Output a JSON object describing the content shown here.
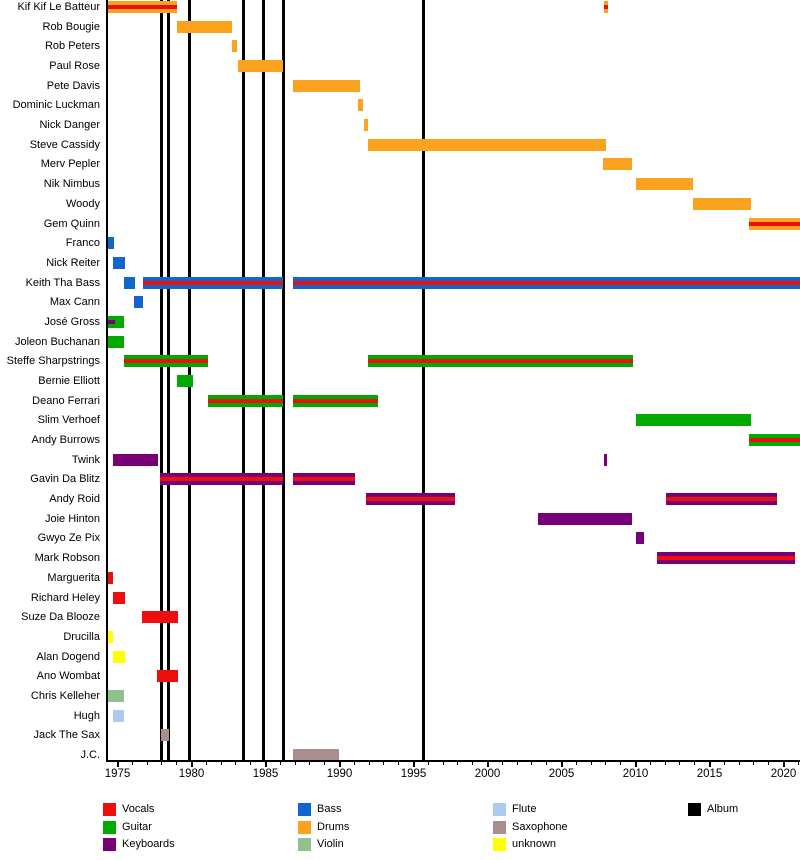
{
  "colors": {
    "vocals": "#ee0e0e",
    "guitar": "#00aa00",
    "keyboards": "#770077",
    "bass": "#1166cc",
    "drums": "#fba31e",
    "violin": "#90c290",
    "flute": "#aecaf0",
    "saxophone": "#aa8d8d",
    "unknown": "#ffff00",
    "album": "#000000"
  },
  "chart_data": {
    "type": "timeline",
    "x_range": [
      1974.3,
      2021.2
    ],
    "grid": false,
    "x_ticks": [
      {
        "label": "1975",
        "year": 1975
      },
      {
        "label": "1980",
        "year": 1980
      },
      {
        "label": "1985",
        "year": 1985
      },
      {
        "label": "1990",
        "year": 1990
      },
      {
        "label": "1995",
        "year": 1995
      },
      {
        "label": "2000",
        "year": 2000
      },
      {
        "label": "2005",
        "year": 2005
      },
      {
        "label": "2010",
        "year": 2010
      },
      {
        "label": "2015",
        "year": 2015
      },
      {
        "label": "2020",
        "year": 2020
      }
    ],
    "album_years": [
      1977.95,
      1978.45,
      1979.85,
      1983.5,
      1984.85,
      1986.2,
      1995.7
    ],
    "rows": [
      {
        "name": "Kif Kif Le Batteur",
        "bars": [
          {
            "from": 1974.3,
            "to": 1979.0,
            "role": "drums",
            "stripe": "vocals"
          },
          {
            "from": 2007.9,
            "to": 2008.15,
            "role": "drums",
            "stripe": "vocals"
          }
        ]
      },
      {
        "name": "Rob Bougie",
        "bars": [
          {
            "from": 1979.0,
            "to": 1982.75,
            "role": "drums"
          }
        ]
      },
      {
        "name": "Rob Peters",
        "bars": [
          {
            "from": 1982.75,
            "to": 1983.05,
            "role": "drums"
          }
        ]
      },
      {
        "name": "Paul Rose",
        "bars": [
          {
            "from": 1983.15,
            "to": 1986.2,
            "role": "drums"
          }
        ]
      },
      {
        "name": "Pete Davis",
        "bars": [
          {
            "from": 1986.85,
            "to": 1991.4,
            "role": "drums"
          }
        ]
      },
      {
        "name": "Dominic Luckman",
        "bars": [
          {
            "from": 1991.25,
            "to": 1991.6,
            "role": "drums"
          }
        ]
      },
      {
        "name": "Nick Danger",
        "bars": [
          {
            "from": 1991.65,
            "to": 1991.9,
            "role": "drums"
          }
        ]
      },
      {
        "name": "Steve Cassidy",
        "bars": [
          {
            "from": 1991.9,
            "to": 2008.0,
            "role": "drums"
          }
        ]
      },
      {
        "name": "Merv Pepler",
        "bars": [
          {
            "from": 2007.8,
            "to": 2009.75,
            "role": "drums"
          }
        ]
      },
      {
        "name": "Nik Nimbus",
        "bars": [
          {
            "from": 2010.05,
            "to": 2013.9,
            "role": "drums"
          }
        ]
      },
      {
        "name": "Woody",
        "bars": [
          {
            "from": 2013.9,
            "to": 2017.8,
            "role": "drums"
          }
        ]
      },
      {
        "name": "Gem Quinn",
        "bars": [
          {
            "from": 2017.7,
            "to": 2021.2,
            "role": "drums",
            "stripe": "vocals"
          }
        ]
      },
      {
        "name": "Franco",
        "bars": [
          {
            "from": 1974.3,
            "to": 1974.75,
            "role": "bass"
          }
        ]
      },
      {
        "name": "Nick Reiter",
        "bars": [
          {
            "from": 1974.7,
            "to": 1975.5,
            "role": "bass"
          }
        ]
      },
      {
        "name": "Keith Tha Bass",
        "bars": [
          {
            "from": 1975.45,
            "to": 1976.2,
            "role": "bass"
          },
          {
            "from": 1976.7,
            "to": 1986.2,
            "role": "bass",
            "stripe": "vocals"
          },
          {
            "from": 1986.85,
            "to": 2021.2,
            "role": "bass",
            "stripe": "vocals"
          }
        ]
      },
      {
        "name": "Max Cann",
        "bars": [
          {
            "from": 1976.1,
            "to": 1976.7,
            "role": "bass"
          }
        ]
      },
      {
        "name": "José Gross",
        "bars": [
          {
            "from": 1974.3,
            "to": 1975.45,
            "role": "guitar"
          },
          {
            "from": 1974.3,
            "to": 1974.8,
            "role": "keyboards",
            "thin": true
          }
        ]
      },
      {
        "name": "Joleon Buchanan",
        "bars": [
          {
            "from": 1974.3,
            "to": 1975.45,
            "role": "guitar"
          }
        ]
      },
      {
        "name": "Steffe Sharpstrings",
        "bars": [
          {
            "from": 1975.45,
            "to": 1981.1,
            "role": "guitar",
            "stripe": "vocals"
          },
          {
            "from": 1991.9,
            "to": 2009.8,
            "role": "guitar",
            "stripe": "vocals"
          }
        ]
      },
      {
        "name": "Bernie Elliott",
        "bars": [
          {
            "from": 1979.0,
            "to": 1980.1,
            "role": "guitar"
          }
        ]
      },
      {
        "name": "Deano Ferrari",
        "bars": [
          {
            "from": 1981.1,
            "to": 1986.2,
            "role": "guitar",
            "stripe": "vocals"
          },
          {
            "from": 1986.85,
            "to": 1992.6,
            "role": "guitar",
            "stripe": "vocals"
          }
        ]
      },
      {
        "name": "Slim Verhoef",
        "bars": [
          {
            "from": 2010.05,
            "to": 2017.8,
            "role": "guitar"
          }
        ]
      },
      {
        "name": "Andy Burrows",
        "bars": [
          {
            "from": 2017.7,
            "to": 2021.2,
            "role": "guitar",
            "stripe": "vocals"
          }
        ]
      },
      {
        "name": "Twink",
        "bars": [
          {
            "from": 1974.7,
            "to": 1977.75,
            "role": "keyboards"
          },
          {
            "from": 2007.9,
            "to": 2008.05,
            "role": "keyboards"
          }
        ]
      },
      {
        "name": "Gavin Da Blitz",
        "bars": [
          {
            "from": 1977.85,
            "to": 1986.2,
            "role": "keyboards",
            "stripe": "vocals"
          },
          {
            "from": 1986.85,
            "to": 1991.05,
            "role": "keyboards",
            "stripe": "vocals"
          }
        ]
      },
      {
        "name": "Andy Roid",
        "bars": [
          {
            "from": 1991.8,
            "to": 1997.8,
            "role": "keyboards",
            "stripe": "vocals"
          },
          {
            "from": 2012.05,
            "to": 2019.55,
            "role": "keyboards",
            "stripe": "vocals"
          }
        ]
      },
      {
        "name": "Joie Hinton",
        "bars": [
          {
            "from": 2003.4,
            "to": 2009.75,
            "role": "keyboards"
          }
        ]
      },
      {
        "name": "Gwyo Ze Pix",
        "bars": [
          {
            "from": 2010.05,
            "to": 2010.6,
            "role": "keyboards"
          }
        ]
      },
      {
        "name": "Mark Robson",
        "bars": [
          {
            "from": 2011.45,
            "to": 2020.8,
            "role": "keyboards",
            "stripe": "vocals"
          }
        ]
      },
      {
        "name": "Marguerita",
        "bars": [
          {
            "from": 1974.3,
            "to": 1974.7,
            "role": "vocals"
          }
        ]
      },
      {
        "name": "Richard Heley",
        "bars": [
          {
            "from": 1974.7,
            "to": 1975.5,
            "role": "vocals"
          }
        ]
      },
      {
        "name": "Suze Da Blooze",
        "bars": [
          {
            "from": 1976.65,
            "to": 1979.1,
            "role": "vocals"
          }
        ]
      },
      {
        "name": "Drucilla",
        "bars": [
          {
            "from": 1974.3,
            "to": 1974.7,
            "role": "unknown"
          }
        ]
      },
      {
        "name": "Alan Dogend",
        "bars": [
          {
            "from": 1974.7,
            "to": 1975.5,
            "role": "unknown"
          }
        ]
      },
      {
        "name": "Ano Wombat",
        "bars": [
          {
            "from": 1977.65,
            "to": 1979.1,
            "role": "vocals"
          }
        ]
      },
      {
        "name": "Chris Kelleher",
        "bars": [
          {
            "from": 1974.3,
            "to": 1975.45,
            "role": "violin"
          }
        ]
      },
      {
        "name": "Hugh",
        "bars": [
          {
            "from": 1974.7,
            "to": 1975.45,
            "role": "flute"
          }
        ]
      },
      {
        "name": "Jack The Sax",
        "bars": [
          {
            "from": 1977.95,
            "to": 1978.5,
            "role": "saxophone"
          }
        ]
      },
      {
        "name": "J.C.",
        "bars": [
          {
            "from": 1986.85,
            "to": 1989.95,
            "role": "saxophone"
          }
        ]
      }
    ]
  },
  "legend": {
    "columns": [
      {
        "items": [
          {
            "label": "Vocals",
            "role": "vocals"
          },
          {
            "label": "Guitar",
            "role": "guitar"
          },
          {
            "label": "Keyboards",
            "role": "keyboards"
          }
        ]
      },
      {
        "items": [
          {
            "label": "Bass",
            "role": "bass"
          },
          {
            "label": "Drums",
            "role": "drums"
          },
          {
            "label": "Violin",
            "role": "violin"
          }
        ]
      },
      {
        "items": [
          {
            "label": "Flute",
            "role": "flute"
          },
          {
            "label": "Saxophone",
            "role": "saxophone"
          },
          {
            "label": "unknown",
            "role": "unknown"
          }
        ]
      },
      {
        "items": [
          {
            "label": "Album",
            "role": "album"
          }
        ]
      }
    ]
  }
}
